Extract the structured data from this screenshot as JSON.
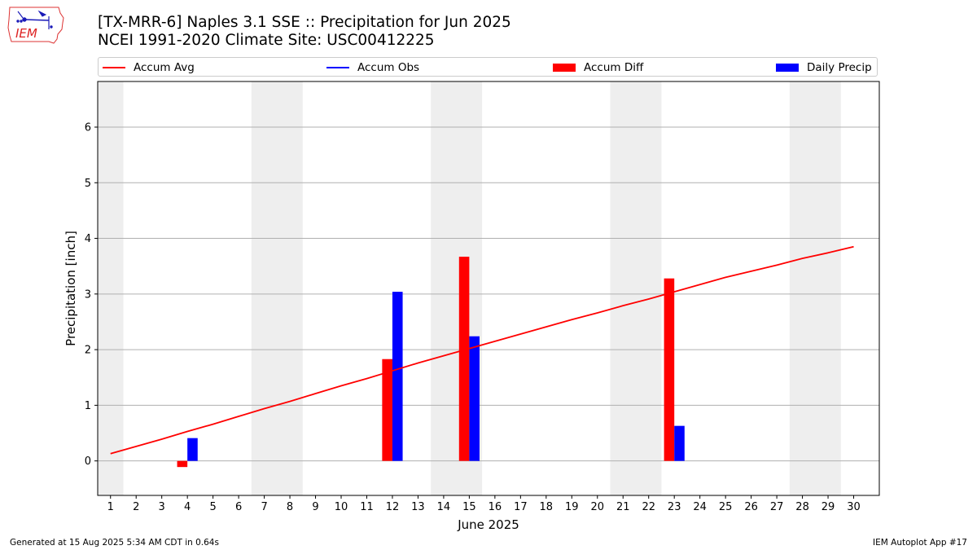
{
  "header": {
    "title_line1": "[TX-MRR-6] Naples 3.1 SSE :: Precipitation for Jun 2025",
    "title_line2": "NCEI 1991-2020 Climate Site: USC00412225"
  },
  "logo": {
    "text": "IEM"
  },
  "footer": {
    "generated": "Generated at 15 Aug 2025 5:34 AM CDT in 0.64s",
    "app": "IEM Autoplot App #17"
  },
  "colors": {
    "avg": "#ff0000",
    "obs": "#0000ff",
    "diff": "#ff0000",
    "daily": "#0000ff",
    "weekend_shade": "#eeeeee",
    "grid": "#b0b0b0"
  },
  "chart_data": {
    "type": "bar",
    "xlabel": "June 2025",
    "ylabel": "Precipitation [inch]",
    "xlim": [
      0.5,
      31.0
    ],
    "ylim": [
      -0.62,
      6.82
    ],
    "yticks": [
      0,
      1,
      2,
      3,
      4,
      5,
      6
    ],
    "xticks": [
      1,
      2,
      3,
      4,
      5,
      6,
      7,
      8,
      9,
      10,
      11,
      12,
      13,
      14,
      15,
      16,
      17,
      18,
      19,
      20,
      21,
      22,
      23,
      24,
      25,
      26,
      27,
      28,
      29,
      30
    ],
    "grid": "y-axis major",
    "legend": {
      "placement": "top",
      "entries": [
        "Accum Avg",
        "Accum Obs",
        "Accum Diff",
        "Daily Precip"
      ]
    },
    "weekend_days": [
      1,
      7,
      8,
      14,
      15,
      21,
      22,
      28,
      29
    ],
    "accum_avg": {
      "name": "Accum Avg",
      "x": [
        1,
        2,
        3,
        4,
        5,
        6,
        7,
        8,
        9,
        10,
        11,
        12,
        13,
        14,
        15,
        16,
        17,
        18,
        19,
        20,
        21,
        22,
        23,
        24,
        25,
        26,
        27,
        28,
        29,
        30
      ],
      "values": [
        0.13,
        0.26,
        0.39,
        0.53,
        0.66,
        0.8,
        0.94,
        1.07,
        1.21,
        1.35,
        1.48,
        1.62,
        1.76,
        1.89,
        2.02,
        2.15,
        2.28,
        2.41,
        2.54,
        2.66,
        2.79,
        2.91,
        3.04,
        3.17,
        3.3,
        3.41,
        3.52,
        3.64,
        3.74,
        3.85
      ]
    },
    "accum_obs": {
      "name": "Accum Obs",
      "x": [],
      "values": []
    },
    "accum_diff": {
      "name": "Accum Diff",
      "x": [
        4,
        12,
        15,
        23
      ],
      "values": [
        -0.11,
        1.83,
        3.67,
        3.28
      ]
    },
    "daily_precip": {
      "name": "Daily Precip",
      "x": [
        4,
        12,
        15,
        23
      ],
      "values": [
        0.41,
        3.04,
        2.24,
        0.63
      ]
    }
  }
}
